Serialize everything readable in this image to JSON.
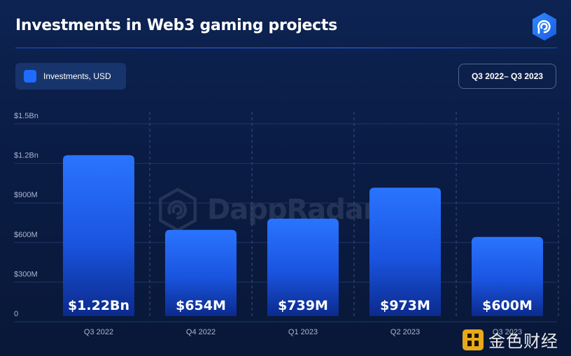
{
  "header": {
    "title": "Investments in Web3 gaming projects",
    "logo_icon": "dappradar-logo-icon"
  },
  "legend": {
    "label": "Investments, USD",
    "color": "#1f6bff"
  },
  "period_badge": {
    "label": "Q3 2022– Q3 2023"
  },
  "watermark": {
    "text": "DappRadar"
  },
  "source_badge": {
    "text": "金色财经"
  },
  "colors": {
    "background": "#0b1e47",
    "bar_top": "#2a74ff",
    "bar_bottom": "#0a2a8a",
    "grid": "#1f3666",
    "accent": "#2b6bf0"
  },
  "chart_data": {
    "type": "bar",
    "categories": [
      "Q3 2022",
      "Q4 2022",
      "Q1 2023",
      "Q2 2023",
      "Q3 2023"
    ],
    "values": [
      1220,
      654,
      739,
      973,
      600
    ],
    "value_unit": "M USD",
    "data_labels": [
      "$1.22Bn",
      "$654M",
      "$739M",
      "$973M",
      "$600M"
    ],
    "yticks": [
      0,
      300,
      600,
      900,
      1200,
      1500
    ],
    "ytick_labels": [
      "0",
      "$300M",
      "$600M",
      "$900M",
      "$1.2Bn",
      "$1.5Bn"
    ],
    "ylim": [
      0,
      1500
    ],
    "grid": true,
    "legend_position": "top-left"
  }
}
